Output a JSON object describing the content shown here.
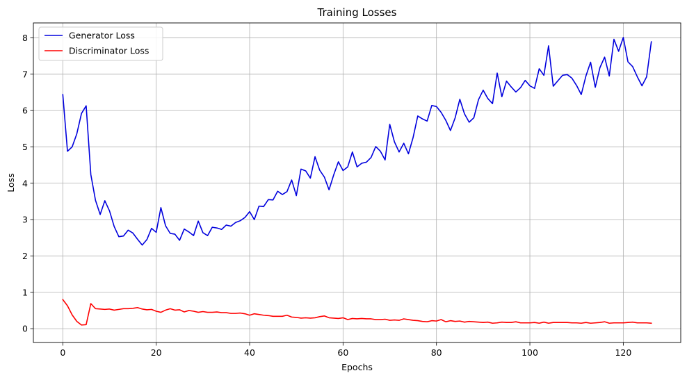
{
  "chart_data": {
    "type": "line",
    "title": "Training Losses",
    "xlabel": "Epochs",
    "ylabel": "Loss",
    "xlim": [
      -6.3,
      132.3
    ],
    "ylim": [
      -0.38,
      8.41
    ],
    "xticks": [
      0,
      20,
      40,
      60,
      80,
      100,
      120
    ],
    "yticks": [
      0,
      1,
      2,
      3,
      4,
      5,
      6,
      7,
      8
    ],
    "grid": true,
    "legend_position": "top-left",
    "series": [
      {
        "name": "Generator Loss",
        "color": "#0000dd",
        "x_start": 0,
        "values": [
          6.44,
          4.88,
          5.0,
          5.36,
          5.92,
          6.13,
          4.24,
          3.53,
          3.14,
          3.52,
          3.24,
          2.81,
          2.53,
          2.55,
          2.71,
          2.63,
          2.46,
          2.3,
          2.45,
          2.76,
          2.65,
          3.33,
          2.83,
          2.62,
          2.6,
          2.43,
          2.74,
          2.66,
          2.56,
          2.96,
          2.64,
          2.56,
          2.79,
          2.77,
          2.73,
          2.85,
          2.82,
          2.92,
          2.97,
          3.06,
          3.22,
          3.0,
          3.37,
          3.36,
          3.55,
          3.54,
          3.78,
          3.69,
          3.77,
          4.09,
          3.66,
          4.39,
          4.34,
          4.14,
          4.73,
          4.36,
          4.17,
          3.82,
          4.23,
          4.59,
          4.35,
          4.45,
          4.86,
          4.45,
          4.55,
          4.58,
          4.71,
          5.01,
          4.88,
          4.64,
          5.62,
          5.14,
          4.86,
          5.1,
          4.81,
          5.26,
          5.85,
          5.77,
          5.71,
          6.14,
          6.11,
          5.95,
          5.73,
          5.45,
          5.8,
          6.31,
          5.91,
          5.68,
          5.8,
          6.3,
          6.56,
          6.33,
          6.19,
          7.03,
          6.38,
          6.81,
          6.65,
          6.51,
          6.63,
          6.83,
          6.68,
          6.61,
          7.15,
          6.97,
          7.78,
          6.67,
          6.82,
          6.97,
          6.99,
          6.89,
          6.69,
          6.44,
          6.95,
          7.33,
          6.64,
          7.18,
          7.47,
          6.95,
          7.96,
          7.63,
          8.01,
          7.34,
          7.21,
          6.93,
          6.68,
          6.93,
          7.89
        ]
      },
      {
        "name": "Discriminator Loss",
        "color": "#ff0000",
        "x_start": 0,
        "values": [
          0.8,
          0.63,
          0.38,
          0.2,
          0.1,
          0.11,
          0.69,
          0.55,
          0.54,
          0.53,
          0.54,
          0.51,
          0.53,
          0.55,
          0.55,
          0.56,
          0.58,
          0.54,
          0.52,
          0.53,
          0.48,
          0.45,
          0.51,
          0.55,
          0.51,
          0.52,
          0.46,
          0.5,
          0.48,
          0.45,
          0.47,
          0.45,
          0.45,
          0.46,
          0.44,
          0.44,
          0.42,
          0.42,
          0.43,
          0.41,
          0.37,
          0.41,
          0.39,
          0.37,
          0.36,
          0.34,
          0.34,
          0.34,
          0.37,
          0.32,
          0.31,
          0.29,
          0.3,
          0.29,
          0.3,
          0.33,
          0.35,
          0.3,
          0.29,
          0.28,
          0.3,
          0.25,
          0.28,
          0.27,
          0.28,
          0.27,
          0.27,
          0.25,
          0.25,
          0.26,
          0.23,
          0.24,
          0.23,
          0.27,
          0.25,
          0.23,
          0.22,
          0.2,
          0.19,
          0.22,
          0.21,
          0.25,
          0.19,
          0.22,
          0.2,
          0.21,
          0.18,
          0.2,
          0.19,
          0.18,
          0.17,
          0.18,
          0.15,
          0.16,
          0.18,
          0.17,
          0.17,
          0.19,
          0.16,
          0.16,
          0.16,
          0.17,
          0.15,
          0.18,
          0.15,
          0.17,
          0.17,
          0.17,
          0.17,
          0.16,
          0.16,
          0.15,
          0.17,
          0.15,
          0.16,
          0.17,
          0.19,
          0.15,
          0.16,
          0.16,
          0.16,
          0.17,
          0.18,
          0.16,
          0.16,
          0.16,
          0.15
        ]
      }
    ]
  }
}
